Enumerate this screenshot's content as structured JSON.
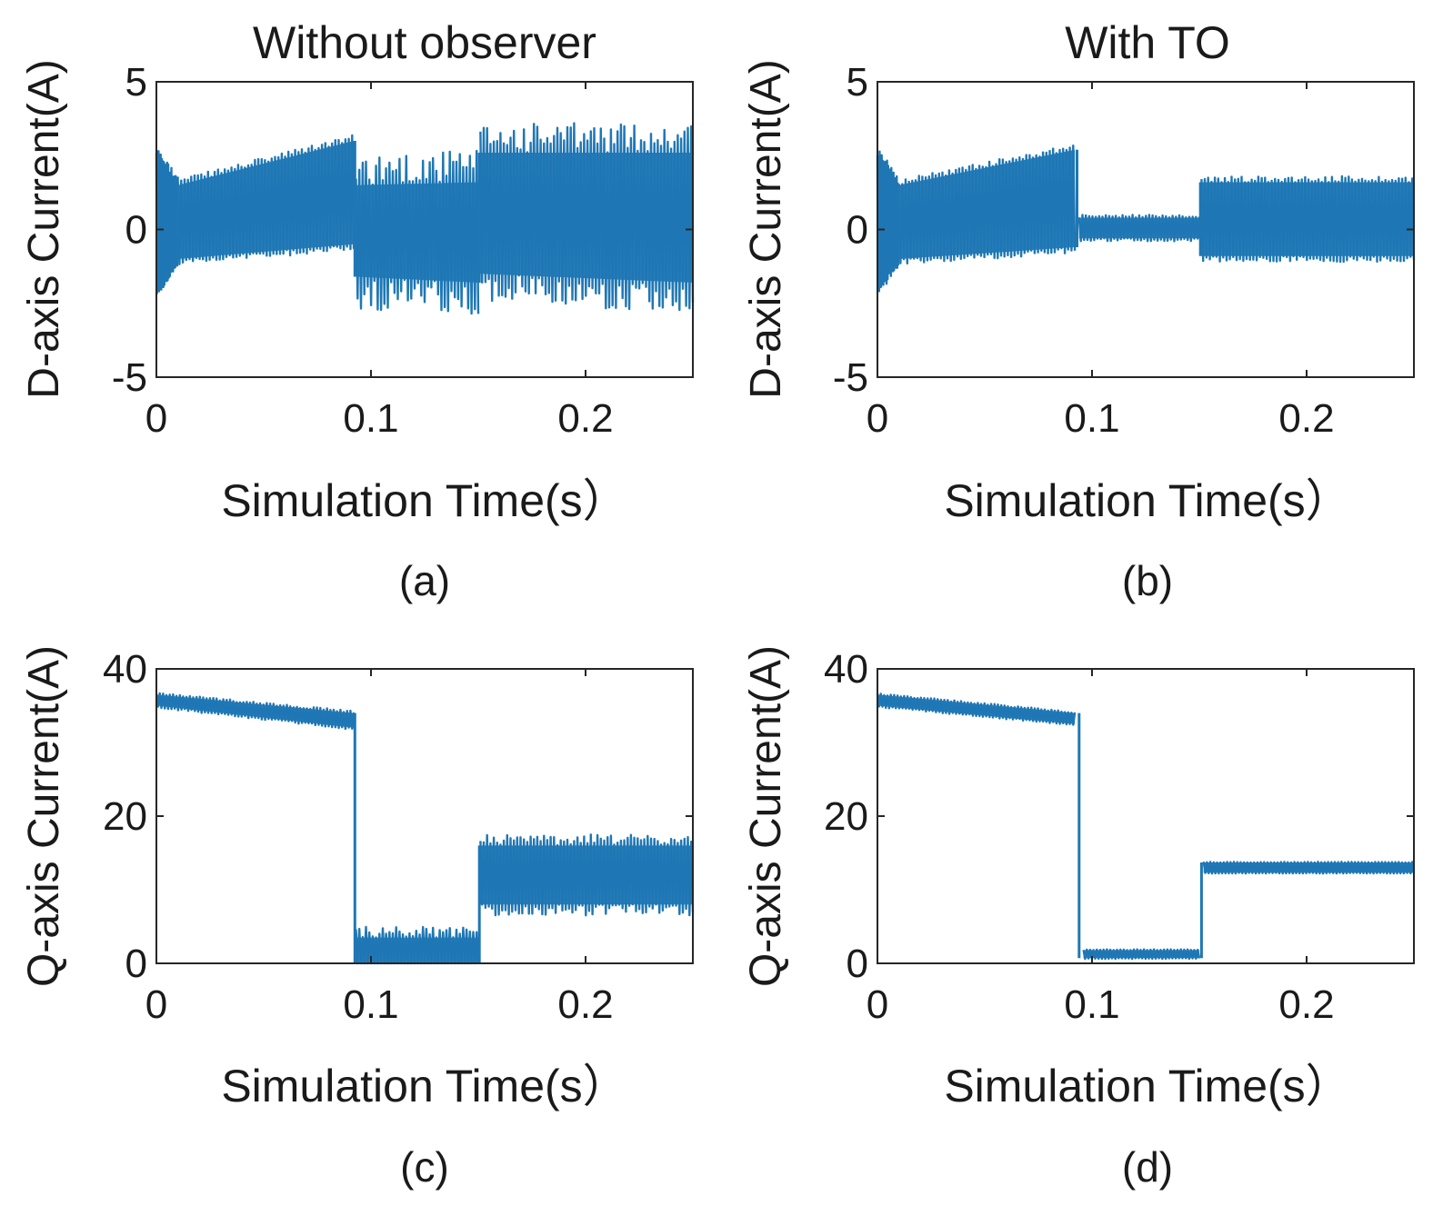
{
  "figure": {
    "line_color": "#1f77b4"
  },
  "chart_data": [
    {
      "id": "a",
      "type": "line",
      "title": "Without observer",
      "panel_label": "(a)",
      "xlabel": "Simulation Time(s）",
      "ylabel": "D-axis Current(A)",
      "xlim": [
        0,
        0.25
      ],
      "ylim": [
        -5,
        5
      ],
      "xticks": [
        0,
        0.1,
        0.2
      ],
      "xtick_labels": [
        "0",
        "0.1",
        "0.2"
      ],
      "yticks": [
        5,
        0,
        -5
      ],
      "ytick_labels": [
        "5",
        "0",
        "-5"
      ],
      "series": [
        {
          "name": "D-axis current",
          "segments": [
            {
              "x0": 0.0,
              "x1": 0.01,
              "lo0": -2.0,
              "lo1": -1.0,
              "hi0": 2.5,
              "hi1": 1.5,
              "spike": 0.3
            },
            {
              "x0": 0.01,
              "x1": 0.092,
              "lo0": -1.0,
              "lo1": -0.5,
              "hi0": 1.5,
              "hi1": 3.0,
              "spike": 0.2
            },
            {
              "x0": 0.093,
              "x1": 0.15,
              "lo0": -1.6,
              "lo1": -1.8,
              "hi0": 1.5,
              "hi1": 1.6,
              "spike": 1.1
            },
            {
              "x0": 0.151,
              "x1": 0.25,
              "lo0": -1.5,
              "lo1": -1.8,
              "hi0": 2.6,
              "hi1": 2.6,
              "spike": 1.0
            }
          ]
        }
      ]
    },
    {
      "id": "b",
      "type": "line",
      "title": "With TO",
      "panel_label": "(b)",
      "xlabel": "Simulation Time(s）",
      "ylabel": "D-axis Current(A)",
      "xlim": [
        0,
        0.25
      ],
      "ylim": [
        -5,
        5
      ],
      "xticks": [
        0,
        0.1,
        0.2
      ],
      "xtick_labels": [
        "0",
        "0.1",
        "0.2"
      ],
      "yticks": [
        5,
        0,
        -5
      ],
      "ytick_labels": [
        "5",
        "0",
        "-5"
      ],
      "series": [
        {
          "name": "D-axis current",
          "segments": [
            {
              "x0": 0.0,
              "x1": 0.01,
              "lo0": -2.0,
              "lo1": -1.0,
              "hi0": 2.5,
              "hi1": 1.5,
              "spike": 0.3
            },
            {
              "x0": 0.01,
              "x1": 0.092,
              "lo0": -1.0,
              "lo1": -0.6,
              "hi0": 1.5,
              "hi1": 2.7,
              "spike": 0.2
            },
            {
              "x0": 0.094,
              "x1": 0.15,
              "lo0": -0.3,
              "lo1": -0.3,
              "hi0": 0.4,
              "hi1": 0.4,
              "spike": 0.1
            },
            {
              "x0": 0.151,
              "x1": 0.25,
              "lo0": -0.9,
              "lo1": -0.9,
              "hi0": 1.6,
              "hi1": 1.6,
              "spike": 0.2
            }
          ]
        }
      ]
    },
    {
      "id": "c",
      "type": "line",
      "title": "",
      "panel_label": "(c)",
      "xlabel": "Simulation Time(s）",
      "ylabel": "Q-axis Current(A)",
      "xlim": [
        0,
        0.25
      ],
      "ylim": [
        0,
        40
      ],
      "xticks": [
        0,
        0.1,
        0.2
      ],
      "xtick_labels": [
        "0",
        "0.1",
        "0.2"
      ],
      "yticks": [
        40,
        20,
        0
      ],
      "ytick_labels": [
        "40",
        "20",
        "0"
      ],
      "series": [
        {
          "name": "Q-axis current",
          "segments": [
            {
              "x0": 0.0,
              "x1": 0.092,
              "lo0": 35.0,
              "lo1": 32.0,
              "hi0": 36.5,
              "hi1": 34.0,
              "spike": 0.3
            },
            {
              "x0": 0.093,
              "x1": 0.15,
              "lo0": 0.0,
              "lo1": 0.0,
              "hi0": 3.5,
              "hi1": 3.5,
              "spike": 1.5
            },
            {
              "x0": 0.151,
              "x1": 0.25,
              "lo0": 8.0,
              "lo1": 8.0,
              "hi0": 16.0,
              "hi1": 16.0,
              "spike": 1.5
            }
          ]
        }
      ]
    },
    {
      "id": "d",
      "type": "line",
      "title": "",
      "panel_label": "(d)",
      "xlabel": "Simulation Time(s）",
      "ylabel": "Q-axis Current(A)",
      "xlim": [
        0,
        0.25
      ],
      "ylim": [
        0,
        40
      ],
      "xticks": [
        0,
        0.1,
        0.2
      ],
      "xtick_labels": [
        "0",
        "0.1",
        "0.2"
      ],
      "yticks": [
        40,
        20,
        0
      ],
      "ytick_labels": [
        "40",
        "20",
        "0"
      ],
      "series": [
        {
          "name": "Q-axis current",
          "segments": [
            {
              "x0": 0.0,
              "x1": 0.092,
              "lo0": 35.0,
              "lo1": 32.5,
              "hi0": 36.5,
              "hi1": 34.0,
              "spike": 0.2
            },
            {
              "x0": 0.096,
              "x1": 0.15,
              "lo0": 0.7,
              "lo1": 0.7,
              "hi0": 1.8,
              "hi1": 1.8,
              "spike": 0.1
            },
            {
              "x0": 0.152,
              "x1": 0.25,
              "lo0": 12.3,
              "lo1": 12.3,
              "hi0": 13.7,
              "hi1": 13.7,
              "spike": 0.1
            }
          ]
        }
      ]
    }
  ]
}
